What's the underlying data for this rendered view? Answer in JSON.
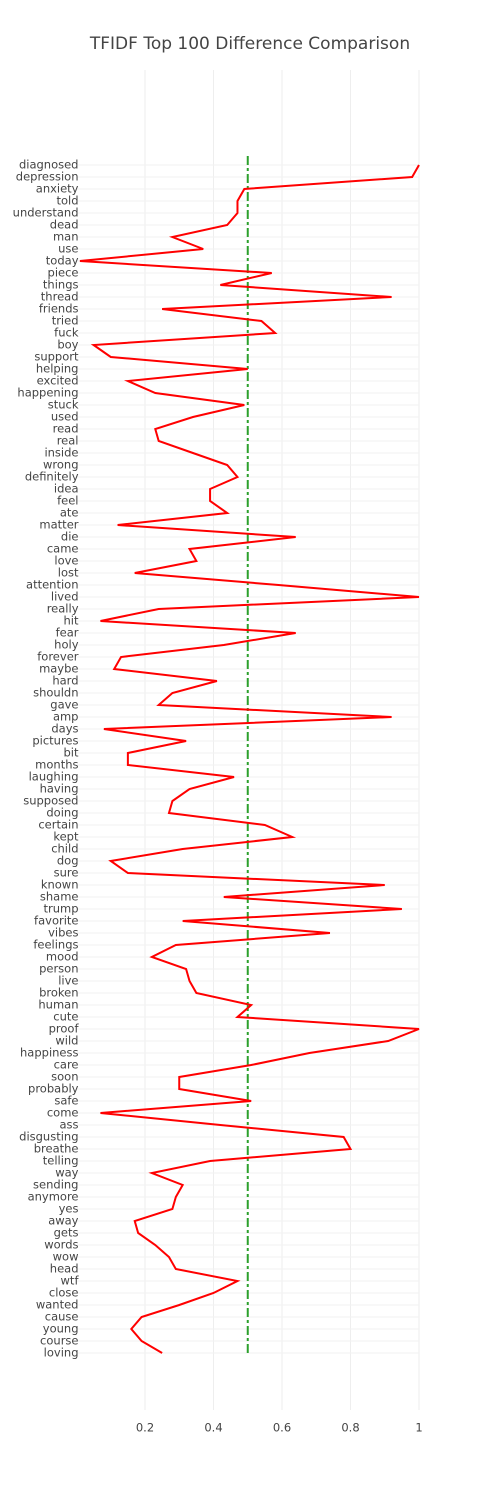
{
  "chart_data": {
    "type": "line",
    "orientation": "horizontal",
    "title": "TFIDF Top 100 Difference Comparison",
    "categories": [
      "diagnosed",
      "depression",
      "anxiety",
      "told",
      "understand",
      "dead",
      "man",
      "use",
      "today",
      "piece",
      "things",
      "thread",
      "friends",
      "tried",
      "fuck",
      "boy",
      "support",
      "helping",
      "excited",
      "happening",
      "stuck",
      "used",
      "read",
      "real",
      "inside",
      "wrong",
      "definitely",
      "idea",
      "feel",
      "ate",
      "matter",
      "die",
      "came",
      "love",
      "lost",
      "attention",
      "lived",
      "really",
      "hit",
      "fear",
      "holy",
      "forever",
      "maybe",
      "hard",
      "shouldn",
      "gave",
      "amp",
      "days",
      "pictures",
      "bit",
      "months",
      "laughing",
      "having",
      "supposed",
      "doing",
      "certain",
      "kept",
      "child",
      "dog",
      "sure",
      "known",
      "shame",
      "trump",
      "favorite",
      "vibes",
      "feelings",
      "mood",
      "person",
      "live",
      "broken",
      "human",
      "cute",
      "proof",
      "wild",
      "happiness",
      "care",
      "soon",
      "probably",
      "safe",
      "come",
      "ass",
      "disgusting",
      "breathe",
      "telling",
      "way",
      "sending",
      "anymore",
      "yes",
      "away",
      "gets",
      "words",
      "wow",
      "head",
      "wtf",
      "close",
      "wanted",
      "cause",
      "young",
      "course",
      "loving"
    ],
    "series": [
      {
        "color": "#ff0000",
        "values": [
          1.0,
          0.98,
          0.49,
          0.47,
          0.47,
          0.44,
          0.28,
          0.37,
          0.01,
          0.57,
          0.42,
          0.92,
          0.25,
          0.54,
          0.58,
          0.05,
          0.1,
          0.5,
          0.15,
          0.23,
          0.49,
          0.34,
          0.23,
          0.24,
          0.34,
          0.44,
          0.47,
          0.39,
          0.39,
          0.44,
          0.12,
          0.64,
          0.33,
          0.35,
          0.17,
          0.59,
          1.0,
          0.24,
          0.07,
          0.64,
          0.43,
          0.13,
          0.11,
          0.41,
          0.28,
          0.24,
          0.92,
          0.08,
          0.32,
          0.15,
          0.15,
          0.46,
          0.33,
          0.28,
          0.27,
          0.55,
          0.63,
          0.31,
          0.1,
          0.15,
          0.9,
          0.43,
          0.95,
          0.31,
          0.74,
          0.29,
          0.22,
          0.32,
          0.33,
          0.35,
          0.51,
          0.47,
          1.0,
          0.91,
          0.68,
          0.51,
          0.3,
          0.3,
          0.51,
          0.07,
          0.42,
          0.78,
          0.8,
          0.39,
          0.22,
          0.31,
          0.29,
          0.28,
          0.17,
          0.18,
          0.23,
          0.27,
          0.29,
          0.47,
          0.4,
          0.3,
          0.19,
          0.16,
          0.19,
          0.25
        ]
      }
    ],
    "reference_line": {
      "value": 0.5,
      "color": "#2ca02c"
    },
    "xlim": [
      0,
      1
    ],
    "xticks": [
      0.2,
      0.4,
      0.6,
      0.8,
      1
    ],
    "grid": true
  }
}
